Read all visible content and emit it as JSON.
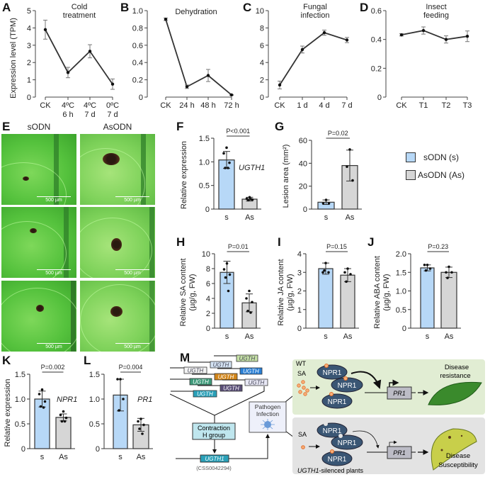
{
  "panel_labels": [
    "A",
    "B",
    "C",
    "D",
    "E",
    "F",
    "G",
    "H",
    "I",
    "J",
    "K",
    "L",
    "M"
  ],
  "colors": {
    "sODN": "#b7d8f7",
    "AsODN": "#d6d6d6",
    "line": "#333333"
  },
  "legend": [
    {
      "label": "sODN (s)",
      "color": "#b7d8f7"
    },
    {
      "label": "AsODN (As)",
      "color": "#d6d6d6"
    }
  ],
  "panel_e": {
    "columns": [
      "sODN",
      "AsODN"
    ],
    "scale_bar": "500 µm"
  },
  "chart_data": [
    {
      "id": "A",
      "type": "line",
      "title": [
        "Cold",
        "treatment"
      ],
      "ylabel": "Expression level (TPM)",
      "ylim": [
        0,
        5
      ],
      "yticks": [
        "0",
        "1",
        "2",
        "3",
        "4",
        "5"
      ],
      "categories": [
        [
          "CK"
        ],
        [
          "4ºC",
          "6 h"
        ],
        [
          "4ºC",
          "7 d"
        ],
        [
          "0ºC",
          "7 d"
        ]
      ],
      "values": [
        3.9,
        1.42,
        2.65,
        0.75
      ],
      "errors": [
        0.55,
        0.3,
        0.38,
        0.3
      ]
    },
    {
      "id": "B",
      "type": "line",
      "title": [
        "Dehydration"
      ],
      "ylabel": "",
      "ylim": [
        0,
        1.0
      ],
      "yticks": [
        "0",
        "0.2",
        "0.4",
        "0.6",
        "0.8",
        "1.0"
      ],
      "categories": [
        [
          "CK"
        ],
        [
          "24 h"
        ],
        [
          "48 h"
        ],
        [
          "72 h"
        ]
      ],
      "values": [
        0.9,
        0.12,
        0.25,
        0.025
      ],
      "errors": [
        0.015,
        0.02,
        0.07,
        0.005
      ]
    },
    {
      "id": "C",
      "type": "line",
      "title": [
        "Fungal",
        "infection"
      ],
      "ylabel": "",
      "ylim": [
        0,
        10
      ],
      "yticks": [
        "0",
        "2",
        "4",
        "6",
        "8",
        "10"
      ],
      "categories": [
        [
          "CK"
        ],
        [
          "1 d"
        ],
        [
          "4 d"
        ],
        [
          "7 d"
        ]
      ],
      "values": [
        1.4,
        5.5,
        7.45,
        6.6
      ],
      "errors": [
        0.45,
        0.4,
        0.3,
        0.3
      ]
    },
    {
      "id": "D",
      "type": "line",
      "title": [
        "Insect",
        "feeding"
      ],
      "ylabel": "",
      "ylim": [
        0,
        0.6
      ],
      "yticks": [
        "0",
        "0.2",
        "0.4",
        "0.6"
      ],
      "categories": [
        [
          "CK"
        ],
        [
          "T1"
        ],
        [
          "T2"
        ],
        [
          "T3"
        ]
      ],
      "values": [
        0.432,
        0.462,
        0.4,
        0.422
      ],
      "errors": [
        0.008,
        0.025,
        0.025,
        0.037
      ]
    },
    {
      "id": "F",
      "type": "bar",
      "ylabel": [
        "Relative expression"
      ],
      "ylim": [
        0,
        1.5
      ],
      "yticks": [
        "0",
        "0.5",
        "1.0",
        "1.5"
      ],
      "categories": [
        "s",
        "As"
      ],
      "values": [
        1.04,
        0.21
      ],
      "errors": [
        0.18,
        0.04
      ],
      "points": [
        [
          1.3,
          1.18,
          0.98,
          0.87,
          0.87
        ],
        [
          0.25,
          0.22,
          0.2,
          0.19,
          0.21
        ]
      ],
      "pvalue": "P<0.001",
      "gene": "UGTH1"
    },
    {
      "id": "G",
      "type": "bar",
      "ylabel": [
        "Lesion area (mm²)"
      ],
      "ylim": [
        0,
        60
      ],
      "yticks": [
        "0",
        "20",
        "40",
        "60"
      ],
      "categories": [
        "s",
        "As"
      ],
      "values": [
        6,
        38
      ],
      "errors": [
        2,
        13.5
      ],
      "points": [
        [
          8,
          5,
          5
        ],
        [
          52,
          37,
          25
        ]
      ],
      "pvalue": "P=0.02",
      "gene": ""
    },
    {
      "id": "H",
      "type": "bar",
      "ylabel": [
        "Relative SA content",
        "(µg/g, FW)"
      ],
      "ylim": [
        0,
        10
      ],
      "yticks": [
        "0",
        "2",
        "4",
        "6",
        "8",
        "10"
      ],
      "categories": [
        "s",
        "As"
      ],
      "values": [
        7.5,
        3.4
      ],
      "errors": [
        1.5,
        1.2
      ],
      "points": [
        [
          8.7,
          7.9,
          7.2,
          6.8,
          5.0
        ],
        [
          5.0,
          4.0,
          3.5,
          2.3,
          2.1
        ]
      ],
      "pvalue": "P=0.01",
      "gene": ""
    },
    {
      "id": "I",
      "type": "bar",
      "ylabel": [
        "Relative JA content",
        "(µg/g, FW)"
      ],
      "ylim": [
        0,
        4
      ],
      "yticks": [
        "0",
        "1",
        "2",
        "3",
        "4"
      ],
      "categories": [
        "s",
        "As"
      ],
      "values": [
        3.2,
        2.85
      ],
      "errors": [
        0.3,
        0.35
      ],
      "points": [
        [
          3.5,
          3.0,
          3.0,
          3.1
        ],
        [
          3.2,
          3.0,
          2.9,
          2.5
        ]
      ],
      "pvalue": "P=0.15",
      "gene": ""
    },
    {
      "id": "J",
      "type": "bar",
      "ylabel": [
        "Relative ABA content",
        "(µg/g, FW)"
      ],
      "ylim": [
        0,
        2.0
      ],
      "yticks": [
        "0",
        "0.5",
        "1.0",
        "1.5",
        "2.0"
      ],
      "categories": [
        "s",
        "As"
      ],
      "values": [
        1.62,
        1.5
      ],
      "errors": [
        0.08,
        0.14
      ],
      "points": [
        [
          1.7,
          1.7,
          1.6,
          1.55
        ],
        [
          1.65,
          1.5,
          1.5,
          1.35
        ]
      ],
      "pvalue": "P=0.23",
      "gene": ""
    },
    {
      "id": "K",
      "type": "bar",
      "ylabel": [
        "Relative expression"
      ],
      "ylim": [
        0,
        1.5
      ],
      "yticks": [
        "0",
        "0.5",
        "1.0",
        "1.5"
      ],
      "categories": [
        "s",
        "As"
      ],
      "values": [
        1.0,
        0.63
      ],
      "errors": [
        0.16,
        0.07
      ],
      "points": [
        [
          1.19,
          1.1,
          0.95,
          0.85,
          0.83
        ],
        [
          0.75,
          0.68,
          0.62,
          0.55,
          0.55
        ]
      ],
      "pvalue": "P=0.002",
      "gene": "NPR1"
    },
    {
      "id": "L",
      "type": "bar",
      "ylabel": [],
      "ylim": [
        0,
        1.5
      ],
      "yticks": [
        "0",
        "0.5",
        "1.0",
        "1.5"
      ],
      "categories": [
        "s",
        "As"
      ],
      "values": [
        1.08,
        0.48
      ],
      "errors": [
        0.32,
        0.13
      ],
      "points": [
        [
          1.4,
          1.4,
          1.0,
          0.77
        ],
        [
          0.6,
          0.55,
          0.48,
          0.4,
          0.3
        ]
      ],
      "pvalue": "P=0.004",
      "gene": "PR1"
    }
  ],
  "diagram": {
    "ugth_boxes": [
      "UGTH",
      "UGTH",
      "UGTH",
      "UGTH",
      "UGTH",
      "UGTH",
      "UGTH",
      "UGTH",
      "UGTH"
    ],
    "contraction": [
      "Contraction",
      "H group"
    ],
    "ugth1": "UGTH1",
    "css_id": "(CSS0042294)",
    "pathogen": [
      "Pathogen",
      "Infection"
    ],
    "wt": "WT",
    "sa": "SA",
    "npr1": "NPR1",
    "pr1": "PR1",
    "resistance": [
      "Disease",
      "resistance"
    ],
    "susceptibility": [
      "Disease",
      "Susceptibility"
    ],
    "silenced_gene": "UGTH1",
    "silenced_suffix": "-silenced plants"
  }
}
